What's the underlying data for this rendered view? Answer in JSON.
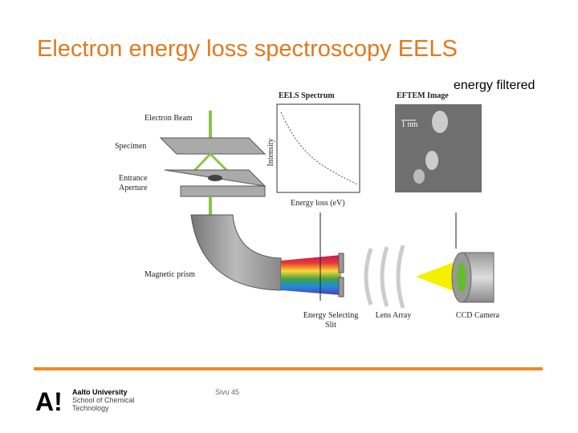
{
  "slide": {
    "title": "Electron energy loss spectroscopy EELS",
    "note": "energy filtered",
    "figure": {
      "spectrum_title": "EELS Spectrum",
      "image_title": "EFTEM Image",
      "scale_bar": "1 nm",
      "y_axis": "Intensity",
      "x_axis": "Energy loss (eV)",
      "electron_beam": "Electron Beam",
      "specimen": "Specimen",
      "entrance_aperture": [
        "Entrance",
        "Aperture"
      ],
      "magnetic_prism": "Magnetic prism",
      "energy_slit": [
        "Energy Selecting",
        "Slit"
      ],
      "lens_array": "Lens Array",
      "ccd_camera": "CCD Camera"
    },
    "footer": {
      "logo": "A!",
      "university": "Aalto University",
      "school": "School of Chemical",
      "department": "Technology",
      "page": "Sivu 45"
    }
  }
}
